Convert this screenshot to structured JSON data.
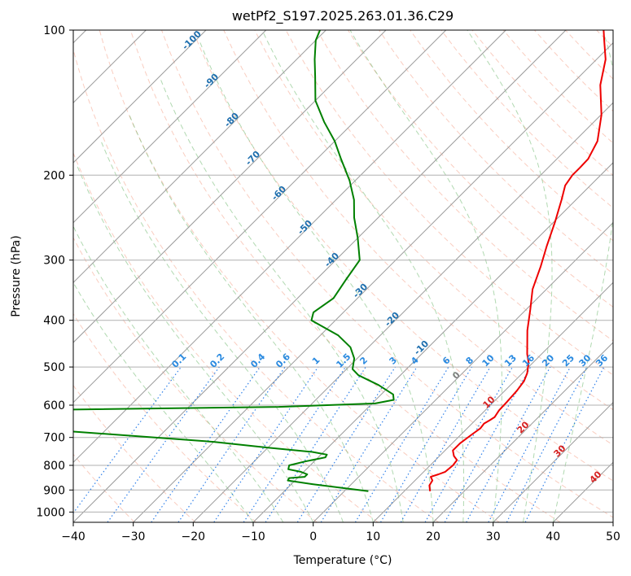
{
  "chart_data": {
    "type": "line",
    "title": "wetPf2_S197.2025.263.01.36.C29",
    "xlabel": "Temperature (°C)",
    "ylabel": "Pressure (hPa)",
    "xlim": [
      -40,
      50
    ],
    "ylim": [
      1050,
      100
    ],
    "y_scale": "log",
    "grid": true,
    "x_ticks": [
      "-40",
      "-30",
      "-20",
      "-10",
      "0",
      "10",
      "20",
      "30",
      "40",
      "50"
    ],
    "y_ticks": [
      "100",
      "200",
      "300",
      "400",
      "500",
      "600",
      "700",
      "800",
      "900",
      "1000"
    ],
    "skew_degrees": 45,
    "series": [
      {
        "color": "#ee0000",
        "points": [
          [
            14.3,
            905
          ],
          [
            13.2,
            880
          ],
          [
            12.9,
            860
          ],
          [
            12.0,
            845
          ],
          [
            12.9,
            835
          ],
          [
            13.6,
            825
          ],
          [
            13.8,
            800
          ],
          [
            13.6,
            780
          ],
          [
            12.4,
            765
          ],
          [
            11.3,
            745
          ],
          [
            11.3,
            720
          ],
          [
            11.8,
            690
          ],
          [
            12.2,
            670
          ],
          [
            12.0,
            655
          ],
          [
            12.4,
            645
          ],
          [
            12.7,
            635
          ],
          [
            12.3,
            615
          ],
          [
            12.2,
            590
          ],
          [
            12.0,
            560
          ],
          [
            11.6,
            535
          ],
          [
            10.8,
            515
          ],
          [
            9.3,
            490
          ],
          [
            7.6,
            470
          ],
          [
            3.7,
            420
          ],
          [
            0.7,
            380
          ],
          [
            -2.3,
            345
          ],
          [
            -4.7,
            310
          ],
          [
            -7.2,
            280
          ],
          [
            -9.8,
            250
          ],
          [
            -12.4,
            225
          ],
          [
            -14.2,
            210
          ],
          [
            -14.7,
            200
          ],
          [
            -14.7,
            193
          ],
          [
            -14.8,
            185
          ],
          [
            -16.2,
            170
          ],
          [
            -19.9,
            150
          ],
          [
            -25.1,
            130
          ],
          [
            -28.5,
            115
          ],
          [
            -31.9,
            105
          ],
          [
            -33.7,
            100
          ]
        ]
      },
      {
        "color": "#008000",
        "points": [
          [
            4.0,
            905
          ],
          [
            -6.5,
            875
          ],
          [
            -11.2,
            860
          ],
          [
            -11.4,
            850
          ],
          [
            -9.0,
            845
          ],
          [
            -9.0,
            835
          ],
          [
            -10.5,
            825
          ],
          [
            -13.0,
            815
          ],
          [
            -13.5,
            800
          ],
          [
            -11.5,
            785
          ],
          [
            -8.8,
            770
          ],
          [
            -9.0,
            760
          ],
          [
            -12.0,
            750
          ],
          [
            -20.0,
            735
          ],
          [
            -30.0,
            715
          ],
          [
            -48.0,
            690
          ],
          [
            -62.0,
            672
          ],
          [
            -78.0,
            663
          ],
          [
            -95.0,
            658
          ],
          [
            -120.0,
            655
          ],
          [
            -120.0,
            620
          ],
          [
            -70.0,
            615
          ],
          [
            -25.0,
            605
          ],
          [
            -9.5,
            595
          ],
          [
            -7.0,
            585
          ],
          [
            -8.0,
            570
          ],
          [
            -12.0,
            545
          ],
          [
            -17.0,
            520
          ],
          [
            -19.0,
            505
          ],
          [
            -20.5,
            480
          ],
          [
            -23.0,
            455
          ],
          [
            -27.0,
            430
          ],
          [
            -34.0,
            400
          ],
          [
            -35.0,
            385
          ],
          [
            -34.0,
            360
          ],
          [
            -35.0,
            330
          ],
          [
            -36.0,
            300
          ],
          [
            -40.0,
            270
          ],
          [
            -44.0,
            245
          ],
          [
            -47.0,
            225
          ],
          [
            -51.0,
            205
          ],
          [
            -56.0,
            185
          ],
          [
            -60.0,
            170
          ],
          [
            -65.0,
            155
          ],
          [
            -70.0,
            140
          ],
          [
            -74.0,
            125
          ],
          [
            -77.0,
            115
          ],
          [
            -80.0,
            105
          ],
          [
            -81.0,
            100
          ]
        ]
      }
    ],
    "dry_adiabat_labels": [
      "-100",
      "-90",
      "-80",
      "-70",
      "-60",
      "-50",
      "-40",
      "-30",
      "-20",
      "-10"
    ],
    "moist_adiabat_labels": [
      "0",
      "10",
      "20",
      "30",
      "40"
    ],
    "mixing_ratio_labels": [
      "0.1",
      "0.2",
      "0.4",
      "0.6",
      "1",
      "1.5",
      "2",
      "3",
      "4",
      "6",
      "8",
      "10",
      "13",
      "16",
      "20",
      "25",
      "30",
      "36"
    ]
  }
}
